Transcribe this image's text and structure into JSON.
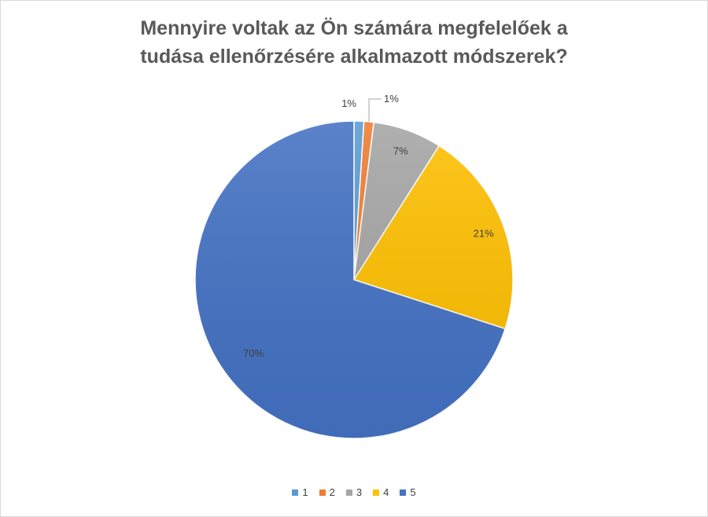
{
  "chart_data": {
    "type": "pie",
    "title_lines": [
      "Mennyire voltak az Ön számára megfelelőek a",
      "tudása ellenőrzésére alkalmazott módszerek?"
    ],
    "categories": [
      "1",
      "2",
      "3",
      "4",
      "5"
    ],
    "values": [
      1,
      1,
      7,
      21,
      70
    ],
    "data_labels": [
      "1%",
      "1%",
      "7%",
      "21%",
      "70%"
    ],
    "colors": [
      "#5b9bd5",
      "#ed7d31",
      "#a5a5a5",
      "#ffc000",
      "#4472c4"
    ],
    "legend_position": "bottom"
  }
}
